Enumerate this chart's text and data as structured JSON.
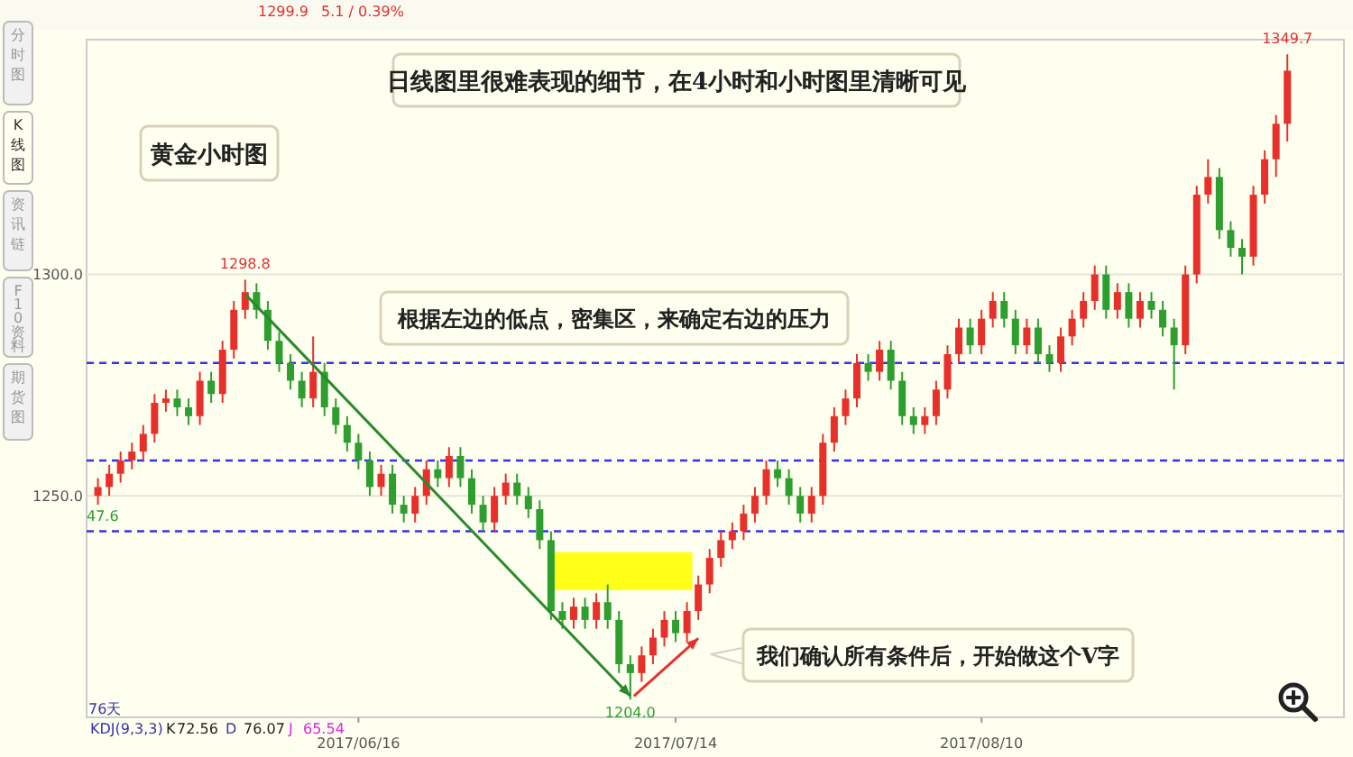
{
  "chart_data": {
    "type": "candlestick",
    "x": [
      "2017-05-24",
      "2017-05-25",
      "2017-05-26",
      "2017-05-27",
      "2017-05-28",
      "2017-05-29",
      "2017-05-30",
      "2017-05-31",
      "2017-06-01",
      "2017-06-02",
      "2017-06-03",
      "2017-06-04",
      "2017-06-05",
      "2017-06-06",
      "2017-06-07",
      "2017-06-08",
      "2017-06-09",
      "2017-06-10",
      "2017-06-11",
      "2017-06-12",
      "2017-06-13",
      "2017-06-14",
      "2017-06-15",
      "2017-06-16",
      "2017-06-17",
      "2017-06-18",
      "2017-06-19",
      "2017-06-20",
      "2017-06-21",
      "2017-06-22",
      "2017-06-23",
      "2017-06-24",
      "2017-06-25",
      "2017-06-26",
      "2017-06-27",
      "2017-06-28",
      "2017-06-29",
      "2017-06-30",
      "2017-07-01",
      "2017-07-02",
      "2017-07-03",
      "2017-07-04",
      "2017-07-05",
      "2017-07-06",
      "2017-07-07",
      "2017-07-08",
      "2017-07-09",
      "2017-07-10",
      "2017-07-11",
      "2017-07-12",
      "2017-07-13",
      "2017-07-14",
      "2017-07-15",
      "2017-07-16",
      "2017-07-17",
      "2017-07-18",
      "2017-07-19",
      "2017-07-20",
      "2017-07-21",
      "2017-07-22",
      "2017-07-23",
      "2017-07-24",
      "2017-07-25",
      "2017-07-26",
      "2017-07-27",
      "2017-07-28",
      "2017-07-29",
      "2017-07-30",
      "2017-07-31",
      "2017-08-01",
      "2017-08-02",
      "2017-08-03",
      "2017-08-04",
      "2017-08-05",
      "2017-08-06",
      "2017-08-07",
      "2017-08-08",
      "2017-08-09",
      "2017-08-10",
      "2017-08-11",
      "2017-08-12",
      "2017-08-13",
      "2017-08-14",
      "2017-08-15",
      "2017-08-16",
      "2017-08-17",
      "2017-08-18",
      "2017-08-19",
      "2017-08-20",
      "2017-08-21",
      "2017-08-22",
      "2017-08-23",
      "2017-08-24",
      "2017-08-25",
      "2017-08-26",
      "2017-08-27",
      "2017-08-28",
      "2017-08-29",
      "2017-08-30",
      "2017-08-31",
      "2017-09-01",
      "2017-09-02",
      "2017-09-03",
      "2017-09-04",
      "2017-09-05",
      "2017-09-06"
    ],
    "ohlc": [
      [
        1250,
        1254,
        1248,
        1252
      ],
      [
        1252,
        1257,
        1250,
        1255
      ],
      [
        1255,
        1260,
        1253,
        1258
      ],
      [
        1258,
        1262,
        1256,
        1260
      ],
      [
        1260,
        1266,
        1258,
        1264
      ],
      [
        1264,
        1273,
        1262,
        1271
      ],
      [
        1271,
        1274,
        1269,
        1272
      ],
      [
        1272,
        1274,
        1268,
        1270
      ],
      [
        1270,
        1272,
        1266,
        1268
      ],
      [
        1268,
        1278,
        1266,
        1276
      ],
      [
        1276,
        1278,
        1271,
        1273
      ],
      [
        1273,
        1285,
        1271,
        1283
      ],
      [
        1283,
        1294,
        1281,
        1292
      ],
      [
        1292,
        1298.8,
        1290,
        1296
      ],
      [
        1296,
        1298,
        1290,
        1292
      ],
      [
        1292,
        1294,
        1283,
        1285
      ],
      [
        1285,
        1287,
        1278,
        1280
      ],
      [
        1280,
        1282,
        1274,
        1276
      ],
      [
        1276,
        1278,
        1270,
        1272
      ],
      [
        1272,
        1286,
        1270,
        1278
      ],
      [
        1278,
        1280,
        1268,
        1270
      ],
      [
        1270,
        1272,
        1264,
        1266
      ],
      [
        1266,
        1268,
        1260,
        1262
      ],
      [
        1262,
        1264,
        1256,
        1258
      ],
      [
        1258,
        1260,
        1250,
        1252
      ],
      [
        1252,
        1257,
        1250,
        1255
      ],
      [
        1255,
        1257,
        1246,
        1248
      ],
      [
        1248,
        1250,
        1244,
        1246
      ],
      [
        1246,
        1252,
        1244,
        1250
      ],
      [
        1250,
        1258,
        1248,
        1256
      ],
      [
        1256,
        1258,
        1252,
        1254
      ],
      [
        1254,
        1261,
        1252,
        1259
      ],
      [
        1259,
        1261,
        1252,
        1254
      ],
      [
        1254,
        1256,
        1246,
        1248
      ],
      [
        1248,
        1250,
        1242,
        1244
      ],
      [
        1244,
        1252,
        1242,
        1250
      ],
      [
        1250,
        1255,
        1248,
        1253
      ],
      [
        1253,
        1255,
        1248,
        1250
      ],
      [
        1250,
        1252,
        1245,
        1247
      ],
      [
        1247,
        1249,
        1238,
        1240
      ],
      [
        1240,
        1242,
        1222,
        1224
      ],
      [
        1224,
        1226,
        1220,
        1222
      ],
      [
        1222,
        1227,
        1220,
        1225
      ],
      [
        1225,
        1227,
        1220,
        1222
      ],
      [
        1222,
        1228,
        1220,
        1226
      ],
      [
        1226,
        1230,
        1220,
        1222
      ],
      [
        1222,
        1224,
        1210,
        1212
      ],
      [
        1212,
        1214,
        1204,
        1210
      ],
      [
        1210,
        1216,
        1208,
        1214
      ],
      [
        1214,
        1220,
        1212,
        1218
      ],
      [
        1218,
        1224,
        1216,
        1222
      ],
      [
        1222,
        1224,
        1217,
        1219
      ],
      [
        1219,
        1226,
        1217,
        1224
      ],
      [
        1224,
        1232,
        1222,
        1230
      ],
      [
        1230,
        1238,
        1228,
        1236
      ],
      [
        1236,
        1242,
        1234,
        1240
      ],
      [
        1240,
        1244,
        1238,
        1242
      ],
      [
        1242,
        1248,
        1240,
        1246
      ],
      [
        1246,
        1252,
        1244,
        1250
      ],
      [
        1250,
        1258,
        1248,
        1256
      ],
      [
        1256,
        1258,
        1252,
        1254
      ],
      [
        1254,
        1256,
        1248,
        1250
      ],
      [
        1250,
        1252,
        1244,
        1246
      ],
      [
        1246,
        1252,
        1244,
        1250
      ],
      [
        1250,
        1264,
        1248,
        1262
      ],
      [
        1262,
        1270,
        1260,
        1268
      ],
      [
        1268,
        1274,
        1266,
        1272
      ],
      [
        1272,
        1282,
        1270,
        1280
      ],
      [
        1280,
        1282,
        1276,
        1278
      ],
      [
        1278,
        1285,
        1276,
        1283
      ],
      [
        1283,
        1285,
        1274,
        1276
      ],
      [
        1276,
        1278,
        1266,
        1268
      ],
      [
        1268,
        1270,
        1264,
        1266
      ],
      [
        1266,
        1270,
        1264,
        1268
      ],
      [
        1268,
        1276,
        1266,
        1274
      ],
      [
        1274,
        1284,
        1272,
        1282
      ],
      [
        1282,
        1290,
        1280,
        1288
      ],
      [
        1288,
        1290,
        1282,
        1284
      ],
      [
        1284,
        1292,
        1282,
        1290
      ],
      [
        1290,
        1296,
        1288,
        1294
      ],
      [
        1294,
        1296,
        1288,
        1290
      ],
      [
        1290,
        1292,
        1282,
        1284
      ],
      [
        1284,
        1290,
        1282,
        1288
      ],
      [
        1288,
        1290,
        1280,
        1282
      ],
      [
        1282,
        1284,
        1278,
        1280
      ],
      [
        1280,
        1288,
        1278,
        1286
      ],
      [
        1286,
        1292,
        1284,
        1290
      ],
      [
        1290,
        1296,
        1288,
        1294
      ],
      [
        1294,
        1302,
        1292,
        1300
      ],
      [
        1300,
        1302,
        1290,
        1292
      ],
      [
        1292,
        1298,
        1290,
        1296
      ],
      [
        1296,
        1298,
        1288,
        1290
      ],
      [
        1290,
        1296,
        1288,
        1294
      ],
      [
        1294,
        1296,
        1290,
        1292
      ],
      [
        1292,
        1294,
        1286,
        1288
      ],
      [
        1288,
        1290,
        1274,
        1284
      ],
      [
        1284,
        1302,
        1282,
        1300
      ],
      [
        1300,
        1320,
        1298,
        1318
      ],
      [
        1318,
        1326,
        1316,
        1322
      ],
      [
        1322,
        1324,
        1308,
        1310
      ],
      [
        1310,
        1312,
        1304,
        1306
      ],
      [
        1306,
        1308,
        1300,
        1304
      ],
      [
        1304,
        1320,
        1302,
        1318
      ],
      [
        1318,
        1328,
        1316,
        1326
      ],
      [
        1326,
        1336,
        1322,
        1334
      ],
      [
        1334,
        1349.7,
        1330,
        1346
      ]
    ],
    "colors": [
      "#e8302a",
      "#e8302a",
      "#e8302a",
      "#e8302a",
      "#e8302a",
      "#e8302a",
      "#e8302a",
      "#2e9e2e",
      "#2e9e2e",
      "#e8302a",
      "#2e9e2e",
      "#e8302a",
      "#e8302a",
      "#e8302a",
      "#2e9e2e",
      "#2e9e2e",
      "#2e9e2e",
      "#2e9e2e",
      "#2e9e2e",
      "#e8302a",
      "#2e9e2e",
      "#2e9e2e",
      "#2e9e2e",
      "#2e9e2e",
      "#2e9e2e",
      "#e8302a",
      "#2e9e2e",
      "#2e9e2e",
      "#e8302a",
      "#e8302a",
      "#2e9e2e",
      "#e8302a",
      "#2e9e2e",
      "#2e9e2e",
      "#2e9e2e",
      "#e8302a",
      "#e8302a",
      "#2e9e2e",
      "#2e9e2e",
      "#2e9e2e",
      "#2e9e2e",
      "#2e9e2e",
      "#e8302a",
      "#2e9e2e",
      "#e8302a",
      "#2e9e2e",
      "#2e9e2e",
      "#2e9e2e",
      "#e8302a",
      "#e8302a",
      "#e8302a",
      "#2e9e2e",
      "#e8302a",
      "#e8302a",
      "#e8302a",
      "#e8302a",
      "#e8302a",
      "#e8302a",
      "#e8302a",
      "#e8302a",
      "#2e9e2e",
      "#2e9e2e",
      "#2e9e2e",
      "#e8302a",
      "#e8302a",
      "#e8302a",
      "#e8302a",
      "#e8302a",
      "#2e9e2e",
      "#e8302a",
      "#2e9e2e",
      "#2e9e2e",
      "#2e9e2e",
      "#e8302a",
      "#e8302a",
      "#e8302a",
      "#e8302a",
      "#2e9e2e",
      "#e8302a",
      "#e8302a",
      "#2e9e2e",
      "#2e9e2e",
      "#e8302a",
      "#2e9e2e",
      "#2e9e2e",
      "#e8302a",
      "#e8302a",
      "#e8302a",
      "#e8302a",
      "#2e9e2e",
      "#e8302a",
      "#2e9e2e",
      "#e8302a",
      "#2e9e2e",
      "#2e9e2e",
      "#2e9e2e",
      "#e8302a",
      "#e8302a",
      "#e8302a",
      "#2e9e2e",
      "#2e9e2e",
      "#2e9e2e",
      "#e8302a",
      "#e8302a",
      "#e8302a",
      "#e8302a"
    ],
    "xlim": [
      "2017-05-23",
      "2017-09-11"
    ],
    "xticks": [
      {
        "value": "2017-06-16",
        "label": "2017/06/16"
      },
      {
        "value": "2017-07-14",
        "label": "2017/07/14"
      },
      {
        "value": "2017-08-10",
        "label": "2017/08/10"
      }
    ],
    "ylim": [
      1200,
      1353
    ],
    "yticks": [
      {
        "value": 1250,
        "label": "1250.0"
      },
      {
        "value": 1300,
        "label": "1300.0"
      }
    ],
    "grid": "y",
    "ref_lines": [
      {
        "axis": "y",
        "value": 1280,
        "color": "#3333ee",
        "line_style": "dashed"
      },
      {
        "axis": "y",
        "value": 1258,
        "color": "#3333ee",
        "line_style": "dashed"
      },
      {
        "axis": "y",
        "value": 1242,
        "color": "#3333ee",
        "line_style": "dashed"
      }
    ],
    "annotations": [
      "黄金小时图",
      "日线图里很难表现的细节，在4小时和小时图里清晰可见",
      "根据左边的低点，密集区，来确定右边的压力",
      "我们确认所有条件后，开始做这个V字",
      "1299.9",
      "5.1 / 0.39%",
      "KDJ(9,3,3)",
      "K",
      "72.56",
      "D",
      "76.07",
      "J",
      "65.54",
      "76天",
      "47.6",
      "分时图",
      "K线图",
      "资讯链",
      "F10资料",
      "期货图",
      {
        "text": "1298.8",
        "x": "2017-06-06",
        "y": 1298.8
      },
      {
        "text": "1204.0",
        "x": "2017-07-10",
        "y": 1204
      },
      {
        "text": "1349.7",
        "x": "2017-09-06",
        "y": 1349.7
      }
    ]
  }
}
